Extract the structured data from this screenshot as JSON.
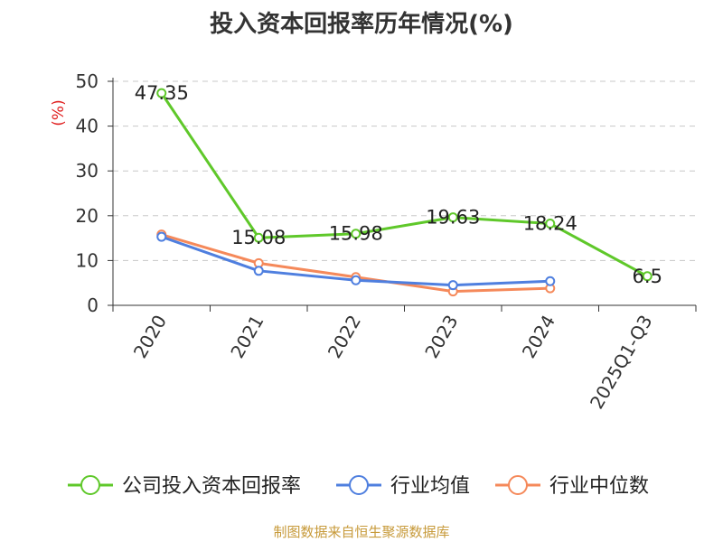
{
  "title": "投入资本回报率历年情况(%)",
  "footer": "制图数据来自恒生聚源数据库",
  "colors": {
    "company": "#5fc82a",
    "industry_avg": "#4f7fdf",
    "industry_median": "#f5895a",
    "grid": "#c8c8c8",
    "axis": "#333333",
    "ylabel": "#e02020"
  },
  "chart_data": {
    "type": "line",
    "title": "投入资本回报率历年情况(%)",
    "ylabel": "(%)",
    "xlabel": "",
    "ylim": [
      0,
      50
    ],
    "yticks": [
      0,
      10,
      20,
      30,
      40,
      50
    ],
    "grid": "horizontal dashed",
    "legend": "bottom",
    "categories": [
      "2020",
      "2021",
      "2022",
      "2023",
      "2024",
      "2025Q1-Q3"
    ],
    "series": [
      {
        "name": "公司投入资本回报率",
        "color": "#5fc82a",
        "values": [
          47.35,
          15.08,
          15.98,
          19.63,
          18.24,
          6.5
        ],
        "labels": [
          "47.35",
          "15.08",
          "15.98",
          "19.63",
          "18.24",
          "6.5"
        ]
      },
      {
        "name": "行业均值",
        "color": "#4f7fdf",
        "values": [
          15.3,
          7.7,
          5.6,
          4.5,
          5.4,
          null
        ]
      },
      {
        "name": "行业中位数",
        "color": "#f5895a",
        "values": [
          15.8,
          9.4,
          6.3,
          3.1,
          3.8,
          null
        ]
      }
    ]
  }
}
